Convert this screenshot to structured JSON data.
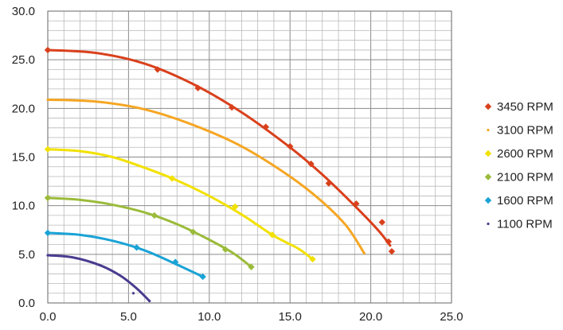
{
  "chart_data": {
    "type": "scatter",
    "title": "",
    "xlabel": "",
    "ylabel": "",
    "xlim": [
      0,
      25
    ],
    "ylim": [
      0,
      30
    ],
    "x_ticks": [
      "0.0",
      "5.0",
      "10.0",
      "15.0",
      "20.0",
      "25.0"
    ],
    "y_ticks": [
      "0.0",
      "5.0",
      "10.0",
      "15.0",
      "20.0",
      "25.0",
      "30.0"
    ],
    "grid": true,
    "legend_position": "right",
    "series": [
      {
        "name": "3450 RPM",
        "color": "#d9401c",
        "marker": "diamond",
        "points": [
          [
            0,
            26.0
          ],
          [
            6.8,
            24.0
          ],
          [
            9.3,
            22.1
          ],
          [
            11.4,
            20.1
          ],
          [
            13.5,
            18.1
          ],
          [
            15.0,
            16.1
          ],
          [
            16.3,
            14.3
          ],
          [
            17.4,
            12.3
          ],
          [
            19.1,
            10.2
          ],
          [
            20.7,
            8.3
          ],
          [
            21.1,
            6.3
          ],
          [
            21.3,
            5.3
          ]
        ],
        "curve": [
          [
            0,
            26.0
          ],
          [
            3,
            25.7
          ],
          [
            6,
            24.6
          ],
          [
            9,
            22.5
          ],
          [
            12,
            19.6
          ],
          [
            15,
            16.0
          ],
          [
            17,
            13.2
          ],
          [
            19,
            10.0
          ],
          [
            20.5,
            7.4
          ],
          [
            21.2,
            5.9
          ]
        ]
      },
      {
        "name": "3100 RPM",
        "color": "#f5a623",
        "marker": "dot",
        "points": [],
        "curve": [
          [
            0,
            20.9
          ],
          [
            3,
            20.7
          ],
          [
            6,
            19.9
          ],
          [
            9,
            18.3
          ],
          [
            12,
            16.1
          ],
          [
            15,
            13.0
          ],
          [
            17,
            10.4
          ],
          [
            18.5,
            7.9
          ],
          [
            19.6,
            5.1
          ]
        ]
      },
      {
        "name": "2600 RPM",
        "color": "#f2e100",
        "marker": "diamond",
        "points": [
          [
            0,
            15.8
          ],
          [
            7.7,
            12.8
          ],
          [
            11.6,
            9.9
          ],
          [
            13.9,
            7.0
          ],
          [
            16.4,
            4.5
          ]
        ],
        "curve": [
          [
            0,
            15.8
          ],
          [
            2,
            15.6
          ],
          [
            4,
            15.0
          ],
          [
            6,
            13.9
          ],
          [
            8,
            12.6
          ],
          [
            10,
            11.0
          ],
          [
            12,
            9.1
          ],
          [
            14,
            6.9
          ],
          [
            15.5,
            5.6
          ],
          [
            16.4,
            4.5
          ]
        ]
      },
      {
        "name": "2100 RPM",
        "color": "#9bbb3a",
        "marker": "diamond",
        "points": [
          [
            0,
            10.8
          ],
          [
            6.6,
            9.0
          ],
          [
            9.0,
            7.3
          ],
          [
            11.0,
            5.5
          ],
          [
            12.6,
            3.7
          ]
        ],
        "curve": [
          [
            0,
            10.8
          ],
          [
            2,
            10.6
          ],
          [
            4,
            10.1
          ],
          [
            6,
            9.3
          ],
          [
            8,
            8.1
          ],
          [
            10,
            6.5
          ],
          [
            11.5,
            5.1
          ],
          [
            12.6,
            3.7
          ]
        ]
      },
      {
        "name": "1600 RPM",
        "color": "#1aa3d6",
        "marker": "diamond",
        "points": [
          [
            0,
            7.2
          ],
          [
            5.5,
            5.7
          ],
          [
            7.9,
            4.2
          ],
          [
            9.6,
            2.7
          ]
        ],
        "curve": [
          [
            0,
            7.2
          ],
          [
            2,
            7.0
          ],
          [
            4,
            6.4
          ],
          [
            6,
            5.4
          ],
          [
            7.8,
            4.1
          ],
          [
            9.6,
            2.7
          ]
        ]
      },
      {
        "name": "1100 RPM",
        "color": "#4a3b8f",
        "marker": "dot",
        "points": [
          [
            0,
            4.9
          ],
          [
            3.2,
            3.9
          ],
          [
            5.3,
            1.0
          ],
          [
            6.3,
            0.2
          ]
        ],
        "curve": [
          [
            0,
            4.9
          ],
          [
            1.5,
            4.7
          ],
          [
            3.2,
            3.9
          ],
          [
            4.5,
            2.8
          ],
          [
            5.5,
            1.5
          ],
          [
            6.3,
            0.2
          ]
        ]
      }
    ]
  }
}
